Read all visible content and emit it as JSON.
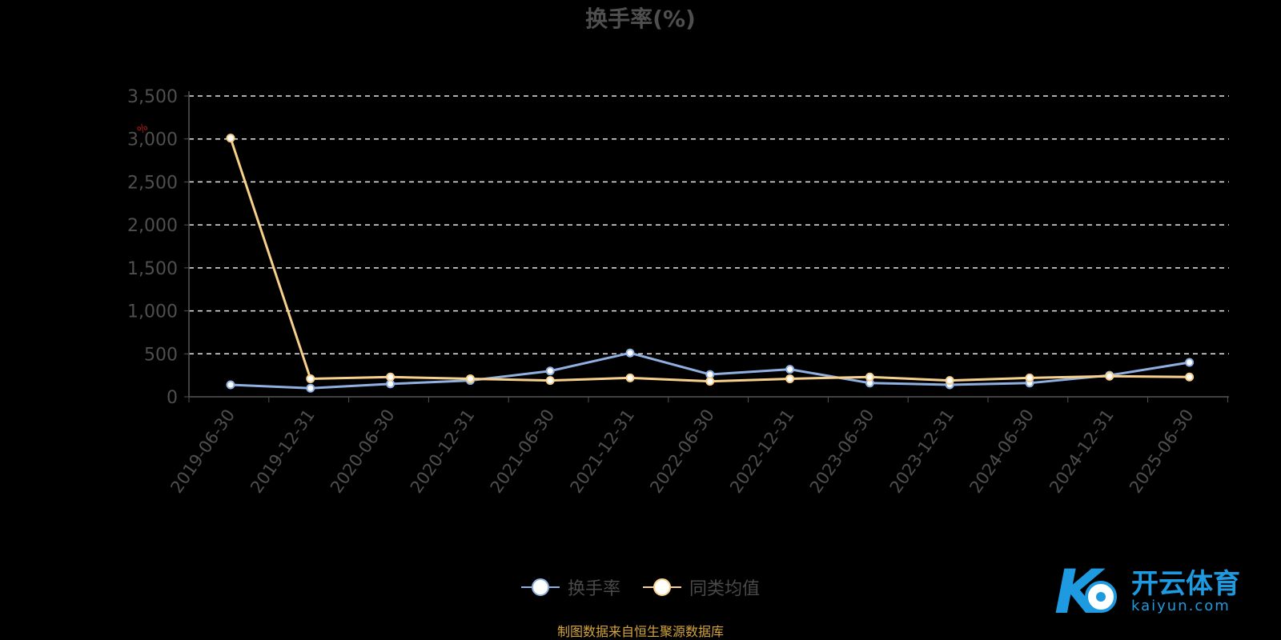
{
  "chart_data": {
    "type": "line",
    "title": "换手率(%)",
    "y_unit": "%",
    "categories": [
      "2019-06-30",
      "2019-12-31",
      "2020-06-30",
      "2020-12-31",
      "2021-06-30",
      "2021-12-31",
      "2022-06-30",
      "2022-12-31",
      "2023-06-30",
      "2023-12-31",
      "2024-06-30",
      "2024-12-31",
      "2025-06-30"
    ],
    "series": [
      {
        "name": "换手率",
        "color": "#8fb0e0",
        "values": [
          140,
          100,
          150,
          190,
          300,
          510,
          260,
          320,
          160,
          140,
          160,
          250,
          400
        ]
      },
      {
        "name": "同类均值",
        "color": "#f7d18c",
        "values": [
          3010,
          210,
          230,
          210,
          190,
          220,
          180,
          210,
          230,
          190,
          220,
          240,
          230
        ]
      }
    ],
    "ylim": [
      0,
      3500
    ],
    "yticks": [
      "0",
      "500",
      "1,000",
      "1,500",
      "2,000",
      "2,500",
      "3,000",
      "3,500"
    ],
    "grid": true,
    "legend_position": "bottom-center"
  },
  "source_note": "制图数据来自恒生聚源数据库",
  "watermark": {
    "brand": "开云体育",
    "url": "kaiyun.com",
    "letter": "K"
  }
}
